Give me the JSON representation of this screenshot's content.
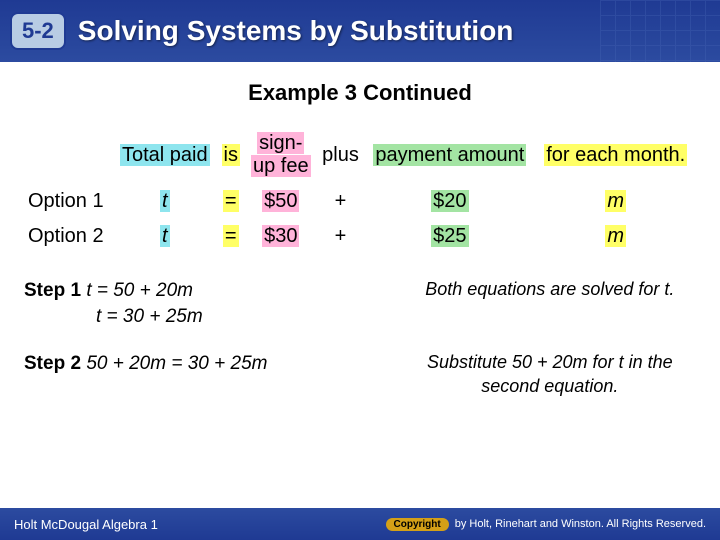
{
  "header": {
    "lesson_number": "5-2",
    "title": "Solving Systems by Substitution"
  },
  "example_title": "Example 3 Continued",
  "table": {
    "header": {
      "c1": "Total paid",
      "c2": "is",
      "c3a": "sign-",
      "c3b": "up fee",
      "c4": "plus",
      "c5": "payment amount",
      "c6": "for each month."
    },
    "rows": [
      {
        "label": "Option 1",
        "total": "t",
        "eq": "=",
        "fee": "$50",
        "plus": "+",
        "pay": "$20",
        "month": "m"
      },
      {
        "label": "Option 2",
        "total": "t",
        "eq": "=",
        "fee": "$30",
        "plus": "+",
        "pay": "$25",
        "month": "m"
      }
    ],
    "highlights": {
      "total_paid": "#8ee5ee",
      "is": "#ffff66",
      "signup": "#ffb3d9",
      "payment": "#a3e4a3",
      "foreach": "#ffff66"
    }
  },
  "steps": {
    "s1": {
      "label": "Step 1",
      "line1": "t = 50 + 20m",
      "line2": "t = 30 + 25m",
      "note": "Both equations are solved for t."
    },
    "s2": {
      "label": "Step 2",
      "line1": "50 + 20m = 30 + 25m",
      "note": "Substitute 50 + 20m for t in the second equation."
    }
  },
  "footer": {
    "left": "Holt McDougal Algebra 1",
    "copyright_label": "Copyright",
    "rights": "by Holt, Rinehart and Winston. All Rights Reserved."
  }
}
